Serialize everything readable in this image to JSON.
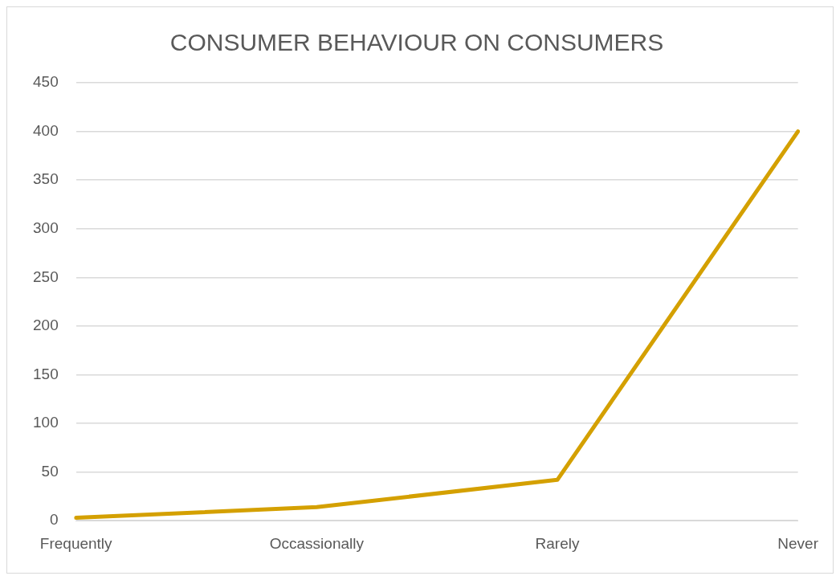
{
  "chart_data": {
    "type": "line",
    "title": "CONSUMER BEHAVIOUR ON CONSUMERS",
    "categories": [
      "Frequently",
      "Occassionally",
      "Rarely",
      "Never"
    ],
    "series": [
      {
        "color": "#d4a000",
        "values": [
          3,
          14,
          42,
          400
        ]
      }
    ],
    "ylim": [
      0,
      450
    ],
    "yticks": [
      0,
      50,
      100,
      150,
      200,
      250,
      300,
      350,
      400,
      450
    ],
    "grid": "y",
    "legend": false,
    "marker": "none",
    "line_style": "solid"
  }
}
